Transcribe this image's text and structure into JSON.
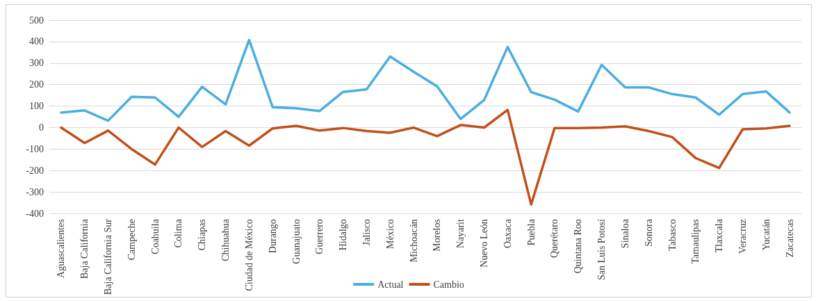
{
  "chart_data": {
    "type": "line",
    "categories": [
      "Aguascalientes",
      "Baja California",
      "Baja California Sur",
      "Campeche",
      "Coahuila",
      "Colima",
      "Chiapas",
      "Chihuahua",
      "Ciudad de México",
      "Durango",
      "Guanajuato",
      "Guerrero",
      "Hidalgo",
      "Jalisco",
      "México",
      "Michoacán",
      "Morelos",
      "Nayarit",
      "Nuevo León",
      "Oaxaca",
      "Puebla",
      "Querétaro",
      "Quintana Roo",
      "San Luis Potosí",
      "Sinaloa",
      "Sonora",
      "Tabasco",
      "Tamaulipas",
      "Tlaxcala",
      "Veracruz",
      "Yucatán",
      "Zacatecas"
    ],
    "series": [
      {
        "name": "Actual",
        "color": "#4aaee0",
        "values": [
          70,
          80,
          32,
          143,
          140,
          50,
          190,
          108,
          408,
          95,
          90,
          77,
          166,
          178,
          331,
          260,
          192,
          40,
          128,
          375,
          165,
          130,
          75,
          292,
          187,
          187,
          156,
          140,
          60,
          156,
          168,
          70
        ]
      },
      {
        "name": "Cambio",
        "color": "#c0501a",
        "values": [
          0,
          -72,
          -14,
          -100,
          -172,
          0,
          -90,
          -16,
          -84,
          -4,
          8,
          -14,
          -2,
          -16,
          -24,
          0,
          -40,
          12,
          0,
          82,
          -358,
          -2,
          -2,
          0,
          6,
          -16,
          -44,
          -142,
          -188,
          -8,
          -4,
          8
        ]
      }
    ],
    "ylim": [
      -400,
      500
    ],
    "yticks": [
      -400,
      -300,
      -200,
      -100,
      0,
      100,
      200,
      300,
      400,
      500
    ],
    "grid": "y",
    "legend": "bottom",
    "marker": "none",
    "line_style": "solid"
  }
}
